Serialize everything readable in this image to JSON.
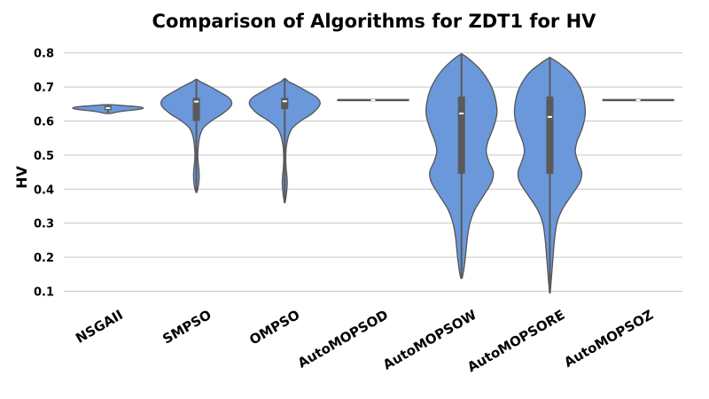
{
  "chart_data": {
    "type": "violin",
    "title": "Comparison of Algorithms for ZDT1 for HV",
    "xlabel": "",
    "ylabel": "HV",
    "ylim": [
      0.07,
      0.82
    ],
    "yticks": [
      "0.1",
      "0.2",
      "0.3",
      "0.4",
      "0.5",
      "0.6",
      "0.7",
      "0.8"
    ],
    "grid": "horizontal",
    "color": "#6a98db",
    "outline_color": "#555555",
    "box_color": "#5a5a5a",
    "categories": [
      "NSGAII",
      "SMPSO",
      "OMPSO",
      "AutoMOPSOD",
      "AutoMOPSOW",
      "AutoMOPSORE",
      "AutoMOPSOZ"
    ],
    "series": [
      {
        "min": 0.622,
        "q1": 0.632,
        "median": 0.638,
        "q3": 0.645,
        "max": 0.648,
        "density": [
          [
            0.622,
            0.08
          ],
          [
            0.628,
            0.35
          ],
          [
            0.634,
            0.85
          ],
          [
            0.638,
            1.0
          ],
          [
            0.642,
            0.85
          ],
          [
            0.646,
            0.35
          ],
          [
            0.648,
            0.08
          ]
        ]
      },
      {
        "min": 0.39,
        "q1": 0.6,
        "median": 0.657,
        "q3": 0.668,
        "max": 0.722,
        "density": [
          [
            0.39,
            0.01
          ],
          [
            0.4,
            0.04
          ],
          [
            0.42,
            0.07
          ],
          [
            0.44,
            0.08
          ],
          [
            0.46,
            0.07
          ],
          [
            0.48,
            0.05
          ],
          [
            0.5,
            0.04
          ],
          [
            0.52,
            0.05
          ],
          [
            0.54,
            0.07
          ],
          [
            0.56,
            0.11
          ],
          [
            0.58,
            0.2
          ],
          [
            0.6,
            0.42
          ],
          [
            0.62,
            0.72
          ],
          [
            0.64,
            0.95
          ],
          [
            0.655,
            1.0
          ],
          [
            0.67,
            0.9
          ],
          [
            0.69,
            0.58
          ],
          [
            0.705,
            0.32
          ],
          [
            0.715,
            0.12
          ],
          [
            0.722,
            0.02
          ]
        ]
      },
      {
        "min": 0.36,
        "q1": 0.635,
        "median": 0.658,
        "q3": 0.668,
        "max": 0.724,
        "density": [
          [
            0.36,
            0.01
          ],
          [
            0.38,
            0.04
          ],
          [
            0.4,
            0.06
          ],
          [
            0.42,
            0.07
          ],
          [
            0.44,
            0.06
          ],
          [
            0.46,
            0.04
          ],
          [
            0.48,
            0.03
          ],
          [
            0.5,
            0.03
          ],
          [
            0.52,
            0.04
          ],
          [
            0.54,
            0.07
          ],
          [
            0.56,
            0.12
          ],
          [
            0.58,
            0.22
          ],
          [
            0.6,
            0.45
          ],
          [
            0.62,
            0.75
          ],
          [
            0.64,
            0.95
          ],
          [
            0.655,
            1.0
          ],
          [
            0.67,
            0.9
          ],
          [
            0.69,
            0.58
          ],
          [
            0.705,
            0.32
          ],
          [
            0.715,
            0.12
          ],
          [
            0.724,
            0.02
          ]
        ]
      },
      {
        "min": 0.661,
        "q1": 0.661,
        "median": 0.661,
        "q3": 0.662,
        "max": 0.662,
        "density": [
          [
            0.66,
            1.0
          ],
          [
            0.663,
            1.0
          ]
        ]
      },
      {
        "min": 0.138,
        "q1": 0.445,
        "median": 0.622,
        "q3": 0.672,
        "max": 0.795,
        "density": [
          [
            0.138,
            0.02
          ],
          [
            0.16,
            0.06
          ],
          [
            0.19,
            0.1
          ],
          [
            0.22,
            0.13
          ],
          [
            0.26,
            0.17
          ],
          [
            0.3,
            0.24
          ],
          [
            0.34,
            0.38
          ],
          [
            0.38,
            0.62
          ],
          [
            0.42,
            0.85
          ],
          [
            0.45,
            0.9
          ],
          [
            0.48,
            0.78
          ],
          [
            0.51,
            0.7
          ],
          [
            0.54,
            0.75
          ],
          [
            0.58,
            0.9
          ],
          [
            0.62,
            1.0
          ],
          [
            0.66,
            0.97
          ],
          [
            0.7,
            0.85
          ],
          [
            0.74,
            0.62
          ],
          [
            0.77,
            0.35
          ],
          [
            0.795,
            0.04
          ]
        ]
      },
      {
        "min": 0.095,
        "q1": 0.445,
        "median": 0.612,
        "q3": 0.672,
        "max": 0.785,
        "density": [
          [
            0.095,
            0.01
          ],
          [
            0.12,
            0.03
          ],
          [
            0.16,
            0.06
          ],
          [
            0.2,
            0.09
          ],
          [
            0.25,
            0.13
          ],
          [
            0.3,
            0.2
          ],
          [
            0.34,
            0.35
          ],
          [
            0.38,
            0.6
          ],
          [
            0.42,
            0.85
          ],
          [
            0.45,
            0.9
          ],
          [
            0.48,
            0.8
          ],
          [
            0.51,
            0.72
          ],
          [
            0.54,
            0.77
          ],
          [
            0.58,
            0.92
          ],
          [
            0.62,
            1.0
          ],
          [
            0.66,
            0.97
          ],
          [
            0.7,
            0.85
          ],
          [
            0.74,
            0.6
          ],
          [
            0.765,
            0.32
          ],
          [
            0.785,
            0.03
          ]
        ]
      },
      {
        "min": 0.661,
        "q1": 0.661,
        "median": 0.661,
        "q3": 0.662,
        "max": 0.662,
        "density": [
          [
            0.66,
            1.0
          ],
          [
            0.663,
            1.0
          ]
        ]
      }
    ]
  }
}
